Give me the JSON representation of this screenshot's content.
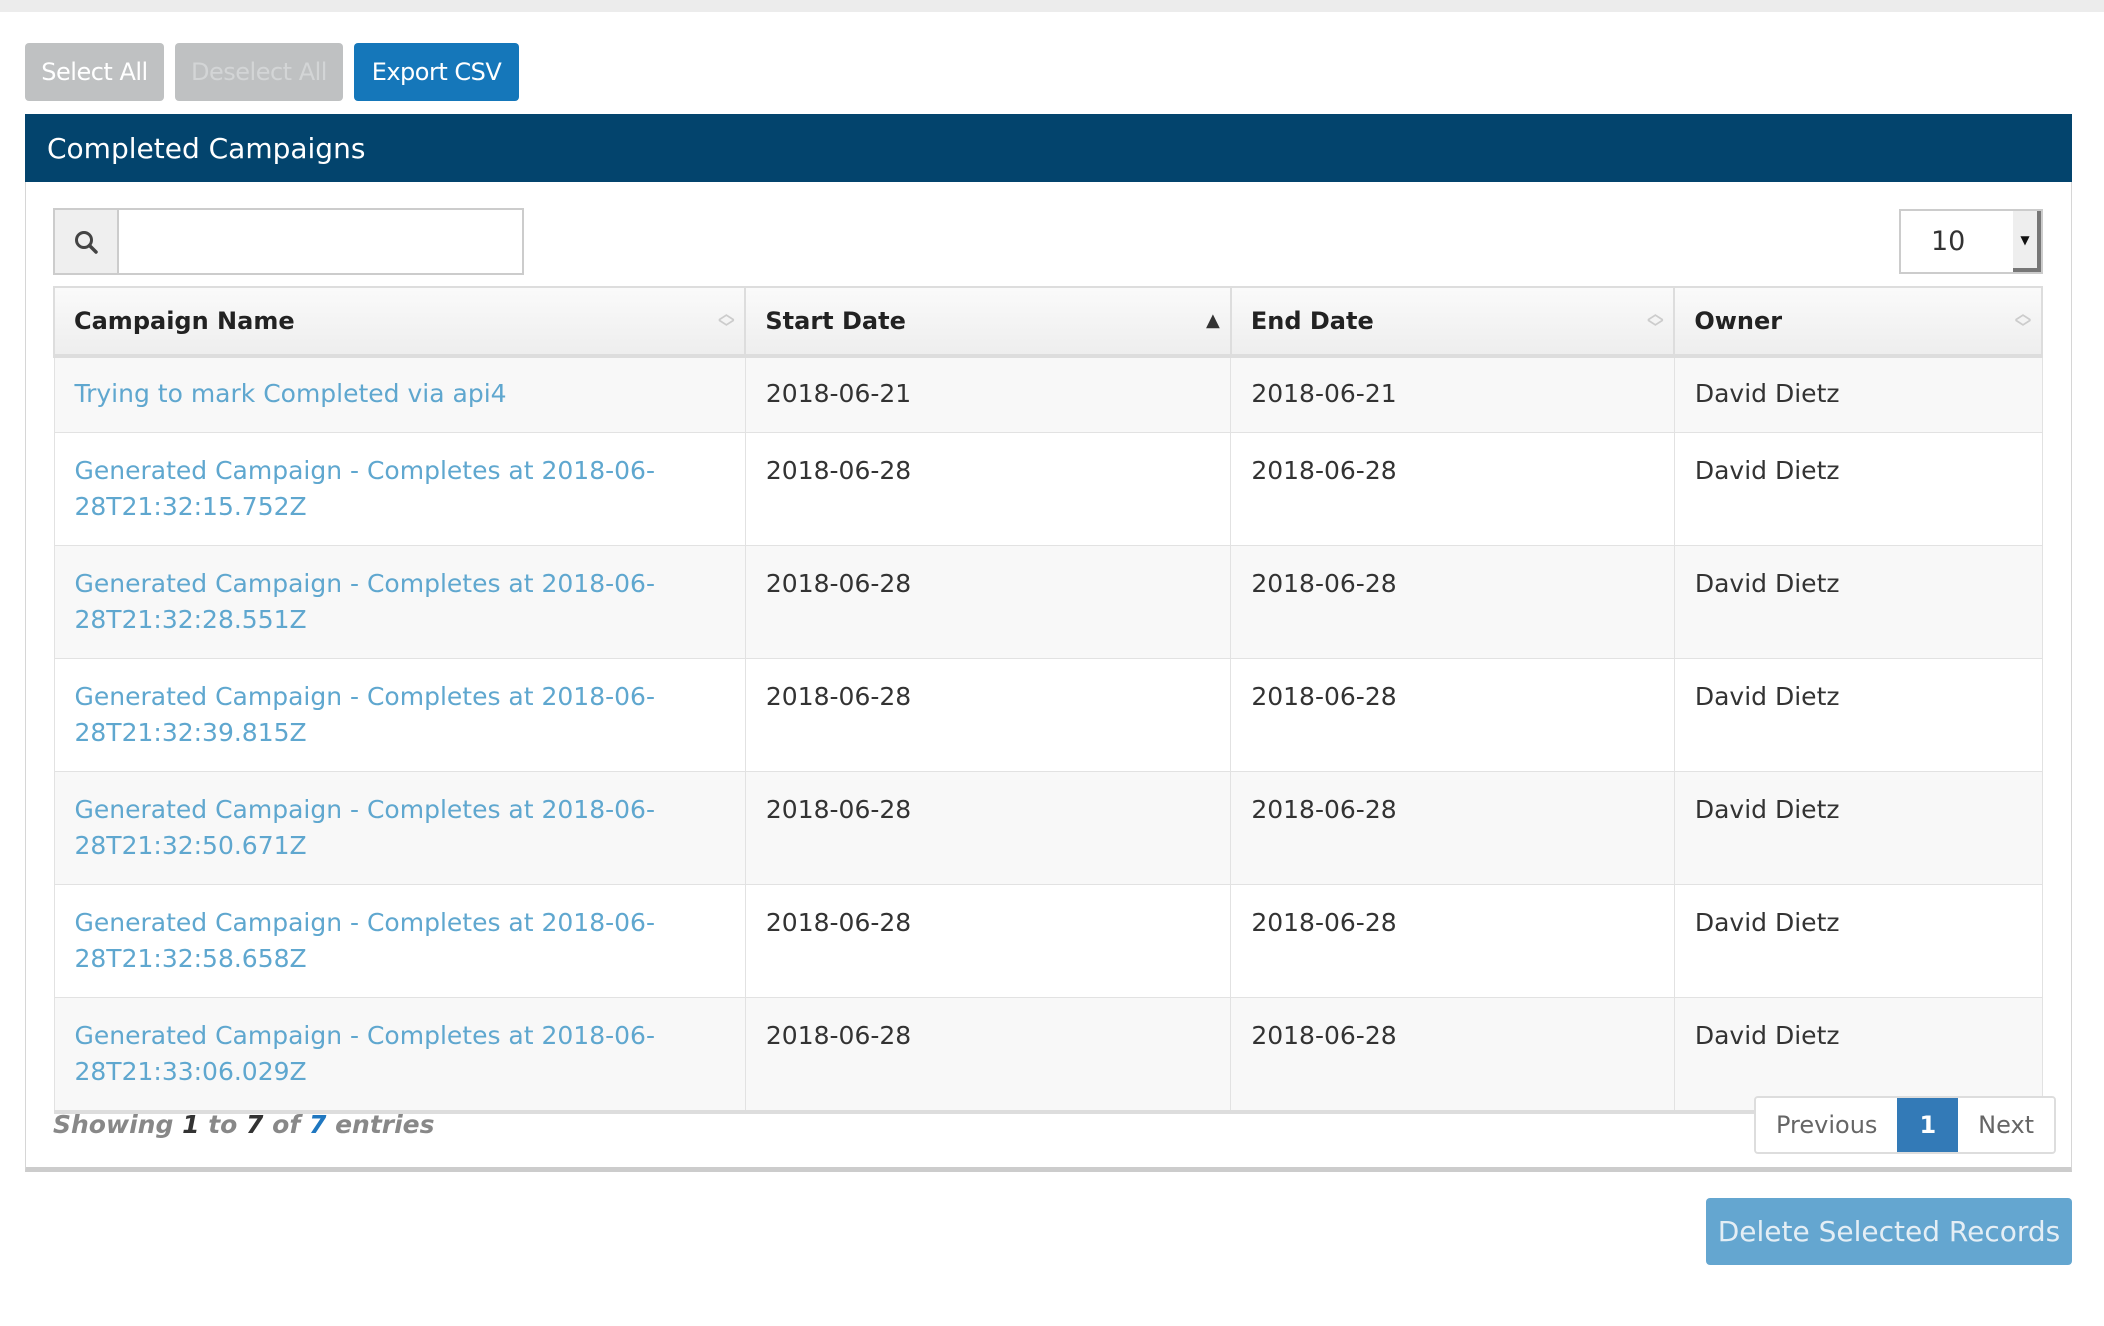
{
  "toolbar": {
    "select_all": "Select All",
    "deselect_all": "Deselect All",
    "export_csv": "Export CSV"
  },
  "panel": {
    "title": "Completed Campaigns"
  },
  "search": {
    "value": "",
    "icon": "search-icon"
  },
  "page_length": {
    "selected": "10"
  },
  "table": {
    "columns": [
      "Campaign Name",
      "Start Date",
      "End Date",
      "Owner"
    ],
    "sorted_column": "Start Date",
    "sort_direction": "ascending",
    "rows": [
      {
        "name": "Trying to mark Completed via api4",
        "start": "2018-06-21",
        "end": "2018-06-21",
        "owner": "David Dietz"
      },
      {
        "name": "Generated Campaign - Completes at 2018-06-28T21:32:15.752Z",
        "start": "2018-06-28",
        "end": "2018-06-28",
        "owner": "David Dietz"
      },
      {
        "name": "Generated Campaign - Completes at 2018-06-28T21:32:28.551Z",
        "start": "2018-06-28",
        "end": "2018-06-28",
        "owner": "David Dietz"
      },
      {
        "name": "Generated Campaign - Completes at 2018-06-28T21:32:39.815Z",
        "start": "2018-06-28",
        "end": "2018-06-28",
        "owner": "David Dietz"
      },
      {
        "name": "Generated Campaign - Completes at 2018-06-28T21:32:50.671Z",
        "start": "2018-06-28",
        "end": "2018-06-28",
        "owner": "David Dietz"
      },
      {
        "name": "Generated Campaign - Completes at 2018-06-28T21:32:58.658Z",
        "start": "2018-06-28",
        "end": "2018-06-28",
        "owner": "David Dietz"
      },
      {
        "name": "Generated Campaign - Completes at 2018-06-28T21:33:06.029Z",
        "start": "2018-06-28",
        "end": "2018-06-28",
        "owner": "David Dietz"
      }
    ]
  },
  "info": {
    "showing": "Showing",
    "from": "1",
    "to_word": "to",
    "to": "7",
    "of_word": "of",
    "total": "7",
    "entries": "entries"
  },
  "pagination": {
    "previous": "Previous",
    "current": "1",
    "next": "Next"
  },
  "delete_button": "Delete Selected Records",
  "colors": {
    "header_bar": "#03446d",
    "primary": "#1577ba",
    "link": "#5fa7cf",
    "disabled": "#bfc1c2"
  }
}
